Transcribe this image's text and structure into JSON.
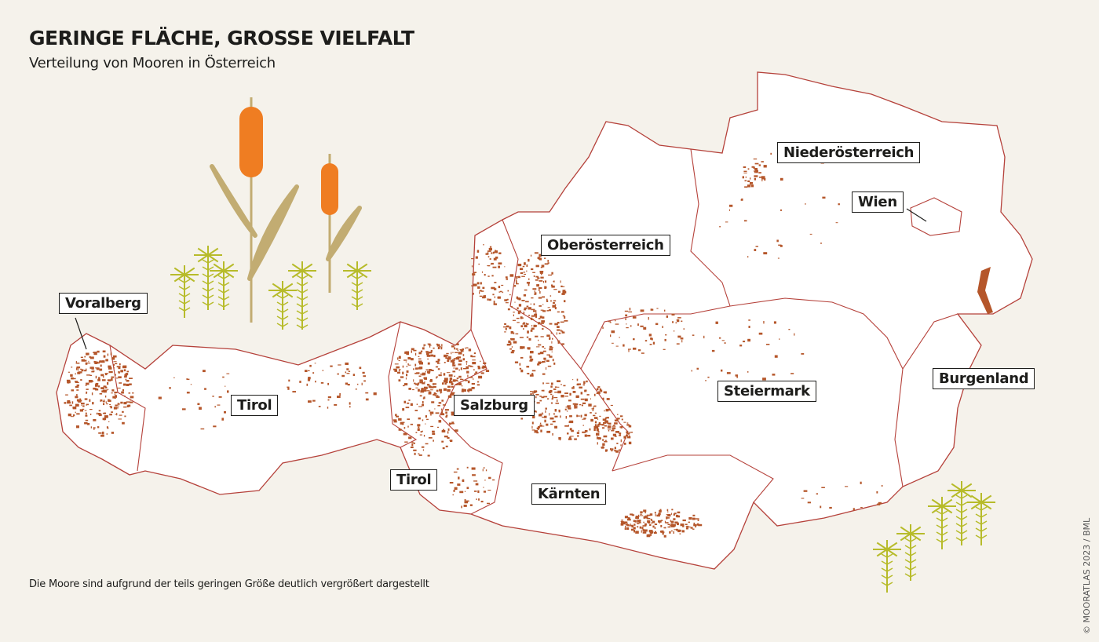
{
  "title": "GERINGE FLÄCHE, GROSSE VIELFALT",
  "subtitle": "Verteilung von Mooren in Österreich",
  "note": "Die Moore sind aufgrund der teils geringen Größe deutlich vergrößert dargestellt",
  "credit": "© MOORATLAS 2023 / BML",
  "colors": {
    "background": "#f5f2eb",
    "land": "#ffffff",
    "border": "#b5413a",
    "moor": "#b5562a",
    "cattail": "#ef7d22",
    "reed": "#c2ac72",
    "moss": "#b7bb2a"
  },
  "regions": [
    {
      "id": "voralberg",
      "label": "Voralberg"
    },
    {
      "id": "tirol",
      "label": "Tirol"
    },
    {
      "id": "salzburg",
      "label": "Salzburg"
    },
    {
      "id": "oberoesterreich",
      "label": "Oberösterreich"
    },
    {
      "id": "niederoesterreich",
      "label": "Niederösterreich"
    },
    {
      "id": "wien",
      "label": "Wien"
    },
    {
      "id": "burgenland",
      "label": "Burgenland"
    },
    {
      "id": "steiermark",
      "label": "Steiermark"
    },
    {
      "id": "osttirol",
      "label": "Tirol"
    },
    {
      "id": "kaernten",
      "label": "Kärnten"
    }
  ]
}
